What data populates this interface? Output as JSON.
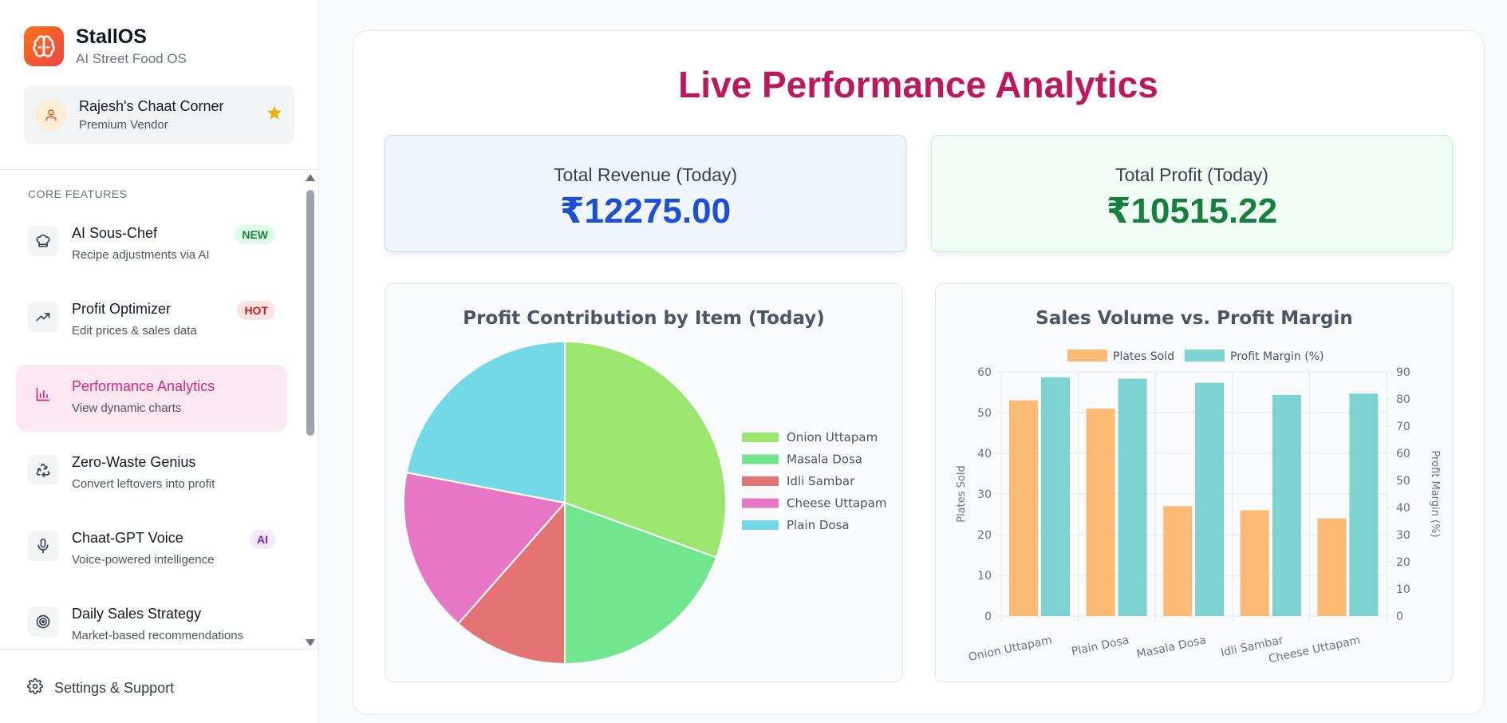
{
  "brand": {
    "title": "StallOS",
    "subtitle": "AI Street Food OS",
    "logo_icon": "brain-icon"
  },
  "vendor": {
    "name": "Rajesh's Chaat Corner",
    "tier": "Premium Vendor",
    "avatar_icon": "user-icon",
    "badge_icon": "star-icon"
  },
  "sidebar": {
    "heading": "CORE FEATURES",
    "items": [
      {
        "title": "AI Sous-Chef",
        "desc": "Recipe adjustments via AI",
        "badge": "NEW",
        "icon": "chef-hat-icon"
      },
      {
        "title": "Profit Optimizer",
        "desc": "Edit prices & sales data",
        "badge": "HOT",
        "icon": "trending-up-icon"
      },
      {
        "title": "Performance Analytics",
        "desc": "View dynamic charts",
        "badge": "",
        "icon": "bar-chart-icon",
        "active": true
      },
      {
        "title": "Zero-Waste Genius",
        "desc": "Convert leftovers into profit",
        "badge": "",
        "icon": "recycle-icon"
      },
      {
        "title": "Chaat-GPT Voice",
        "desc": "Voice-powered intelligence",
        "badge": "AI",
        "icon": "microphone-icon"
      },
      {
        "title": "Daily Sales Strategy",
        "desc": "Market-based recommendations",
        "badge": "",
        "icon": "target-icon"
      }
    ],
    "footer": {
      "label": "Settings & Support",
      "icon": "gear-icon"
    }
  },
  "main": {
    "title": "Live Performance Analytics",
    "revenue": {
      "label": "Total Revenue (Today)",
      "value": "₹12275.00"
    },
    "profit": {
      "label": "Total Profit (Today)",
      "value": "₹10515.22"
    }
  },
  "colors": {
    "accent": "#db2777",
    "revenue": "#1d4ed8",
    "profit": "#15803d"
  },
  "chart_data": [
    {
      "type": "pie",
      "title": "Profit Contribution by Item (Today)",
      "categories": [
        "Onion Uttapam",
        "Masala Dosa",
        "Idli Sambar",
        "Cheese Uttapam",
        "Plain Dosa"
      ],
      "values": [
        30.5,
        19.5,
        11.5,
        16.5,
        22.0
      ],
      "colors": [
        "#9ae66e",
        "#72e58f",
        "#e57373",
        "#e677c5",
        "#72d9e6"
      ],
      "legend": "right"
    },
    {
      "type": "bar",
      "title": "Sales Volume vs. Profit Margin",
      "categories": [
        "Onion Uttapam",
        "Plain Dosa",
        "Masala Dosa",
        "Idli Sambar",
        "Cheese Uttapam"
      ],
      "series": [
        {
          "name": "Plates Sold",
          "values": [
            53,
            51,
            27,
            26,
            24
          ],
          "axis": "left",
          "color": "#fdba74"
        },
        {
          "name": "Profit Margin (%)",
          "values": [
            88,
            87.5,
            86,
            81.5,
            82
          ],
          "axis": "right",
          "color": "#7dd3d1"
        }
      ],
      "ylabel": "Plates Sold",
      "ylabel_right": "Profit Margin (%)",
      "ylim": [
        0,
        60
      ],
      "ylim_right": [
        0,
        90
      ],
      "yticks": [
        "0",
        "10",
        "20",
        "30",
        "40",
        "50",
        "60"
      ],
      "yticks_right": [
        "0",
        "10",
        "20",
        "30",
        "40",
        "50",
        "60",
        "70",
        "80",
        "90"
      ],
      "grid": true,
      "legend": "top"
    }
  ]
}
